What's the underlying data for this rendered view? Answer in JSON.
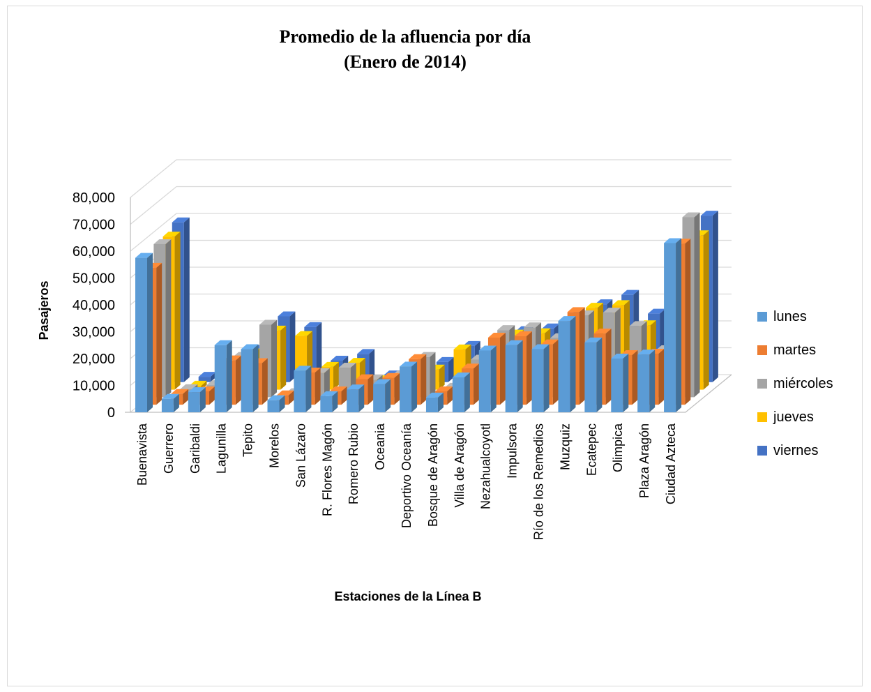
{
  "chart_data": {
    "type": "bar",
    "title": [
      "Promedio de la afluencia por día",
      "(Enero de 2014)"
    ],
    "xlabel": "Estaciones de la Línea B",
    "ylabel": "Pasajeros",
    "ylim": [
      0,
      80000
    ],
    "yticks": [
      "0",
      "10,000",
      "20,000",
      "30,000",
      "40,000",
      "50,000",
      "60,000",
      "70,000",
      "80,000"
    ],
    "grid": true,
    "legend_position": "right",
    "categories": [
      "Buenavista",
      "Guerrero",
      "Garibaldi",
      "Lagunilla",
      "Tepito",
      "Morelos",
      "San Lázaro",
      "R. Flores Magón",
      "Romero Rubio",
      "Oceania",
      "Deportivo Oceanía",
      "Bosque de Aragón",
      "Villa de Aragón",
      "Nezahualcoyotl",
      "Impulsora",
      "Río de los Remedios",
      "Muzquiz",
      "Ecatepec",
      "Olimpica",
      "Plaza Aragón",
      "Ciudad Azteca"
    ],
    "series": [
      {
        "name": "lunes",
        "color": "#5b9bd5",
        "values": [
          57500,
          5000,
          7500,
          25000,
          23500,
          4500,
          15500,
          6000,
          8500,
          10500,
          17000,
          5500,
          13000,
          23000,
          25000,
          23500,
          34000,
          26000,
          20000,
          21500,
          63000
        ]
      },
      {
        "name": "martes",
        "color": "#ed7d31",
        "values": [
          51000,
          4000,
          5000,
          16500,
          15500,
          3500,
          12000,
          5000,
          9500,
          10000,
          17000,
          5000,
          13500,
          25000,
          25500,
          22500,
          34500,
          26500,
          18500,
          19000,
          60000
        ]
      },
      {
        "name": "miércoles",
        "color": "#a5a5a5",
        "values": [
          57000,
          3000,
          4500,
          15000,
          27000,
          1500,
          9000,
          11000,
          6500,
          8000,
          15000,
          3500,
          14000,
          25000,
          26000,
          22000,
          30500,
          31500,
          26500,
          17500,
          67000
        ]
      },
      {
        "name": "jueves",
        "color": "#ffc000",
        "values": [
          57000,
          1500,
          2000,
          13500,
          22000,
          20000,
          8500,
          10000,
          3500,
          8000,
          7500,
          15000,
          11000,
          20500,
          21000,
          22500,
          30500,
          31500,
          24000,
          17500,
          57500
        ]
      },
      {
        "name": "viernes",
        "color": "#4472c4",
        "values": [
          59500,
          2000,
          2500,
          12000,
          24500,
          20500,
          8000,
          10500,
          2500,
          6000,
          7500,
          13500,
          10000,
          19000,
          20000,
          24500,
          29000,
          32500,
          25500,
          16500,
          62000
        ]
      }
    ]
  }
}
